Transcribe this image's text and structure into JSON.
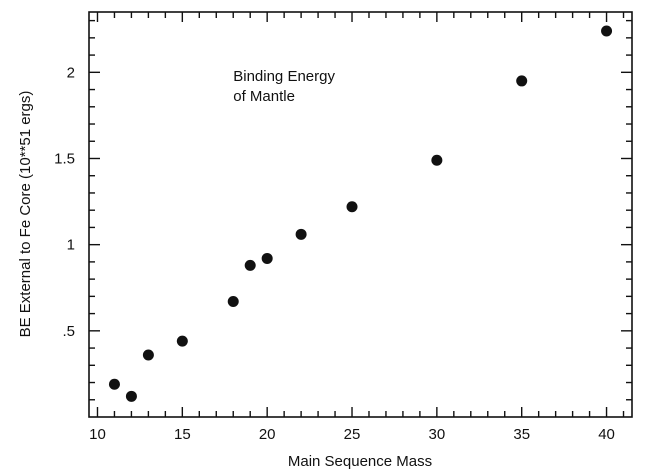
{
  "chart_data": {
    "type": "scatter",
    "title": "",
    "xlabel": "Main Sequence Mass",
    "ylabel": "BE External to Fe Core (10**51 ergs)",
    "xlim": [
      9.5,
      41.5
    ],
    "ylim": [
      0,
      2.35
    ],
    "grid": false,
    "x_ticks": [
      {
        "value": 10,
        "label": "10"
      },
      {
        "value": 15,
        "label": "15"
      },
      {
        "value": 20,
        "label": "20"
      },
      {
        "value": 25,
        "label": "25"
      },
      {
        "value": 30,
        "label": "30"
      },
      {
        "value": 35,
        "label": "35"
      },
      {
        "value": 40,
        "label": "40"
      }
    ],
    "y_ticks": [
      {
        "value": 0.5,
        "label": ".5"
      },
      {
        "value": 1.0,
        "label": "1"
      },
      {
        "value": 1.5,
        "label": "1.5"
      },
      {
        "value": 2.0,
        "label": "2"
      }
    ],
    "annotation_lines": [
      "Binding Energy",
      "of Mantle"
    ],
    "annotation_anchor": {
      "x": 18,
      "y": 1.95
    },
    "series": [
      {
        "points": [
          {
            "x": 11,
            "y": 0.19
          },
          {
            "x": 12,
            "y": 0.12
          },
          {
            "x": 13,
            "y": 0.36
          },
          {
            "x": 15,
            "y": 0.44
          },
          {
            "x": 18,
            "y": 0.67
          },
          {
            "x": 19,
            "y": 0.88
          },
          {
            "x": 20,
            "y": 0.92
          },
          {
            "x": 22,
            "y": 1.06
          },
          {
            "x": 25,
            "y": 1.22
          },
          {
            "x": 30,
            "y": 1.49
          },
          {
            "x": 35,
            "y": 1.95
          },
          {
            "x": 40,
            "y": 2.24
          }
        ]
      }
    ]
  }
}
